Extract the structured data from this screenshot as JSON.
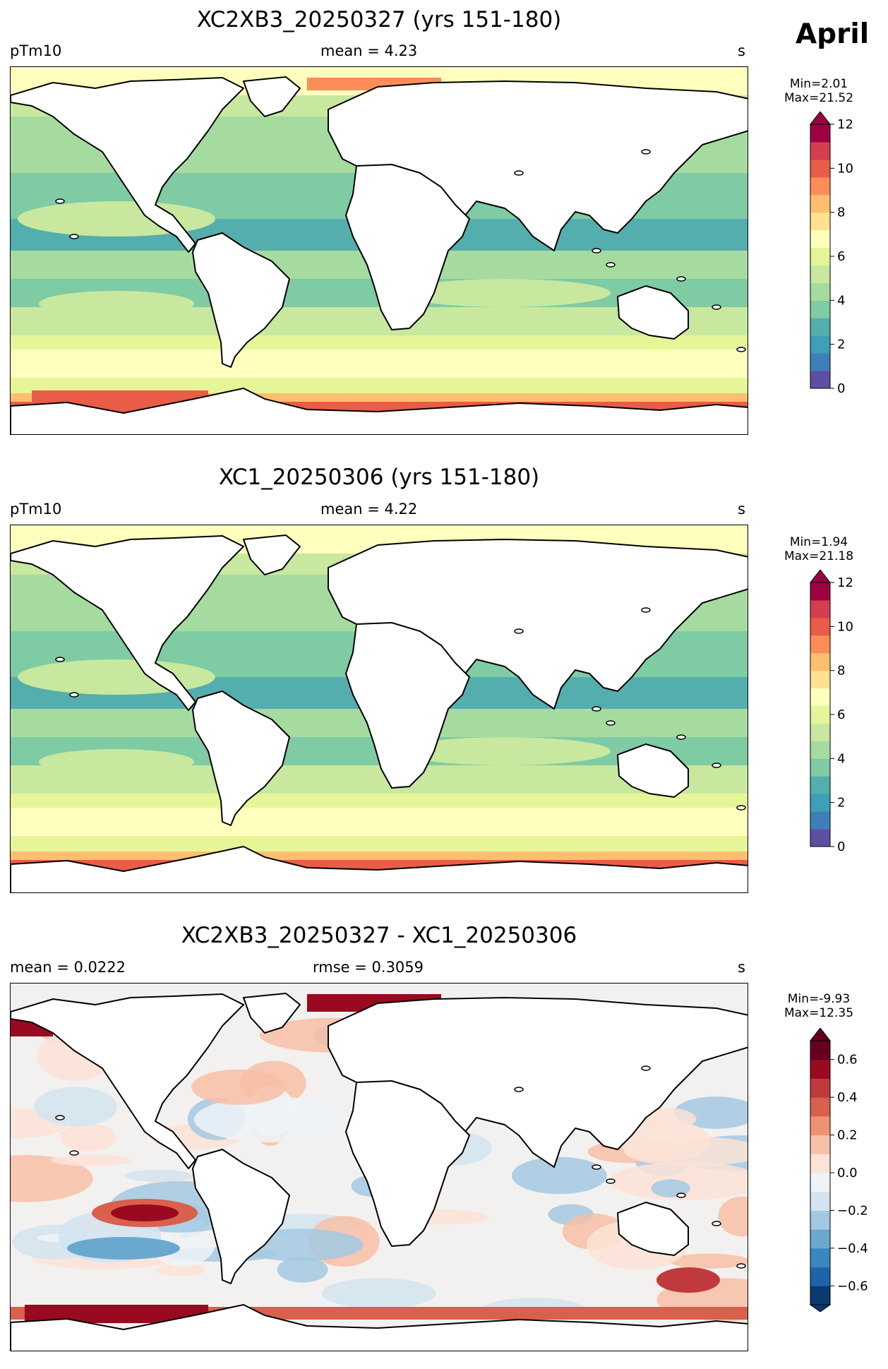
{
  "month_label": "April",
  "panels": [
    {
      "title": "XC2XB3_20250327 (yrs 151-180)",
      "left_label": "pTm10",
      "center_label": "mean = 4.23",
      "right_label": "s",
      "min_label": "Min=2.01",
      "max_label": "Max=21.52",
      "colorbar": {
        "ticks": [
          "0",
          "2",
          "4",
          "6",
          "8",
          "10",
          "12"
        ],
        "colors": [
          "#5e4fa2",
          "#3f7fb9",
          "#3d9fb8",
          "#54aead",
          "#7ecba4",
          "#a6dba0",
          "#c7e89e",
          "#e6f598",
          "#fefebd",
          "#fee28f",
          "#fdbf6f",
          "#fc8d59",
          "#e95c47",
          "#d53e4f",
          "#9e0142"
        ],
        "extend": "max"
      }
    },
    {
      "title": "XC1_20250306 (yrs 151-180)",
      "left_label": "pTm10",
      "center_label": "mean = 4.22",
      "right_label": "s",
      "min_label": "Min=1.94",
      "max_label": "Max=21.18",
      "colorbar": {
        "ticks": [
          "0",
          "2",
          "4",
          "6",
          "8",
          "10",
          "12"
        ],
        "colors": [
          "#5e4fa2",
          "#3f7fb9",
          "#3d9fb8",
          "#54aead",
          "#7ecba4",
          "#a6dba0",
          "#c7e89e",
          "#e6f598",
          "#fefebd",
          "#fee28f",
          "#fdbf6f",
          "#fc8d59",
          "#e95c47",
          "#d53e4f",
          "#9e0142"
        ],
        "extend": "max"
      }
    },
    {
      "title": "XC2XB3_20250327 - XC1_20250306",
      "left_label": "mean = 0.0222",
      "center_label": "rmse = 0.3059",
      "right_label": "s",
      "min_label": "Min=-9.93",
      "max_label": "Max=12.35",
      "colorbar": {
        "ticks": [
          "−0.6",
          "−0.4",
          "−0.2",
          "0.0",
          "0.2",
          "0.4",
          "0.6"
        ],
        "colors": [
          "#0a3a70",
          "#1f64a8",
          "#3a87bf",
          "#6aa8d0",
          "#a3c9e2",
          "#d2e4f0",
          "#eef3f7",
          "#fbe3d6",
          "#f7c0a6",
          "#ef9274",
          "#d8604d",
          "#c0393c",
          "#990a21",
          "#67001f"
        ],
        "extend": "both"
      }
    }
  ]
}
